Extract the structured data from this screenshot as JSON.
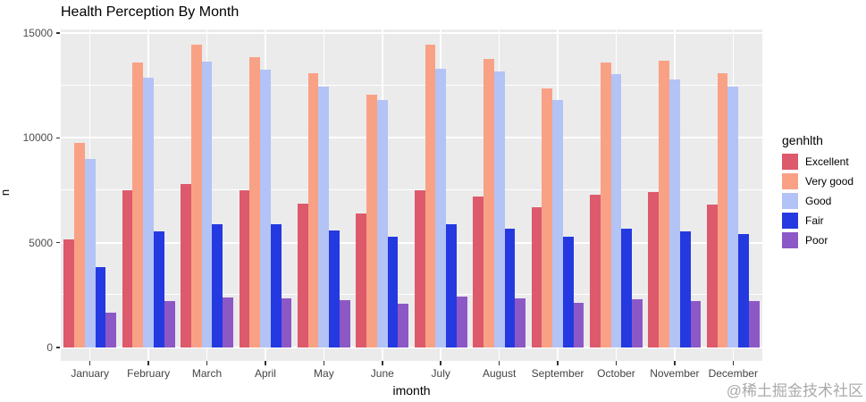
{
  "title": "Health Perception By Month",
  "watermark": "@稀土掘金技术社区",
  "chart_data": {
    "type": "bar",
    "grouped": true,
    "title": "Health Perception By Month",
    "xlabel": "imonth",
    "ylabel": "n",
    "ylim": [
      0,
      15000
    ],
    "yticks": [
      0,
      5000,
      10000,
      15000
    ],
    "yticks_minor": [
      2500,
      7500,
      12500
    ],
    "grid": true,
    "panel_bg": "#EBEBEB",
    "grid_color": "#FFFFFF",
    "legend_title": "genhlth",
    "legend_position": "right",
    "categories": [
      "January",
      "February",
      "March",
      "April",
      "May",
      "June",
      "July",
      "August",
      "September",
      "October",
      "November",
      "December"
    ],
    "series": [
      {
        "name": "Excellent",
        "color": "#DC5A6B",
        "values": [
          5150,
          7500,
          7800,
          7500,
          6850,
          6400,
          7500,
          7200,
          6700,
          7300,
          7400,
          6800
        ]
      },
      {
        "name": "Very good",
        "color": "#F9A185",
        "values": [
          9750,
          13600,
          14450,
          13850,
          13100,
          12050,
          14450,
          13750,
          12350,
          13600,
          13700,
          13100
        ]
      },
      {
        "name": "Good",
        "color": "#B3C3F6",
        "values": [
          9000,
          12850,
          13650,
          13250,
          12450,
          11800,
          13300,
          13150,
          11800,
          13050,
          12800,
          12450
        ]
      },
      {
        "name": "Fair",
        "color": "#2539E0",
        "values": [
          3850,
          5550,
          5900,
          5900,
          5600,
          5300,
          5900,
          5650,
          5300,
          5650,
          5550,
          5400
        ]
      },
      {
        "name": "Poor",
        "color": "#8C58C6",
        "values": [
          1650,
          2200,
          2400,
          2350,
          2250,
          2100,
          2450,
          2350,
          2150,
          2300,
          2200,
          2200
        ]
      }
    ]
  }
}
